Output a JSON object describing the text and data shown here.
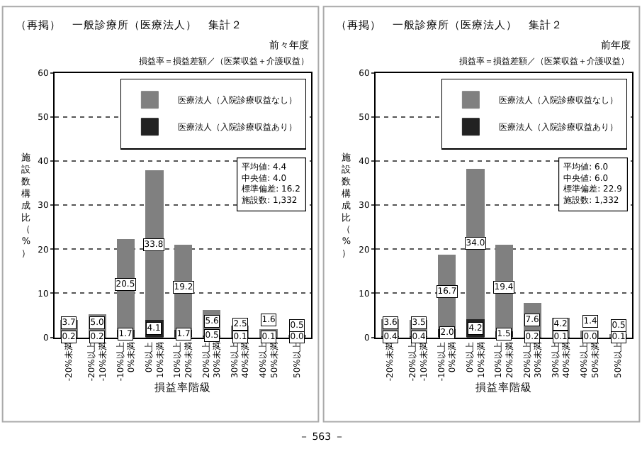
{
  "chart_data": [
    {
      "type": "bar",
      "title": "（再掲）　一般診療所（医療法人）　集計２",
      "subtitle": "前々年度",
      "xlabel": "損益率階級",
      "ylabel": "施設数構成比（%）",
      "annotations": [
        "損益率＝損益差額／（医業収益＋介護収益）",
        "平均値: 4.4",
        "中央値: 4.0",
        "標準偏差: 16.2",
        "施設数: 1,332"
      ],
      "categories": [
        "-20%未満",
        "-20%以上\n-10%未満",
        "-10%以上\n0%未満",
        "0%以上\n10%未満",
        "10%以上\n20%未満",
        "20%以上\n30%未満",
        "30%以上\n40%未満",
        "40%以上\n50%未満",
        "50%以上"
      ],
      "series": [
        {
          "name": "医療法人（入院診療収益あり）",
          "color": "#222222",
          "values": [
            0.2,
            0.2,
            1.7,
            4.1,
            1.7,
            0.5,
            0.1,
            0.1,
            0.0
          ],
          "value_labels": [
            "0.2",
            "0.2",
            "1.7",
            "4.1",
            "1.7",
            "0.5",
            "0.1",
            "0.1",
            "0.0"
          ]
        },
        {
          "name": "医療法人（入院診療収益なし）",
          "color": "#808080",
          "values": [
            3.7,
            5.0,
            20.5,
            33.8,
            19.2,
            5.6,
            2.5,
            1.6,
            0.5
          ],
          "value_labels": [
            "3.7",
            "5.0",
            "20.5",
            "33.8",
            "19.2",
            "5.6",
            "2.5",
            "1.6",
            "0.5"
          ]
        }
      ],
      "stacked": true,
      "ylim": [
        0,
        60
      ],
      "yticks": [
        0,
        10,
        20,
        30,
        40,
        50,
        60
      ],
      "grid": "y",
      "legend": "top right"
    },
    {
      "type": "bar",
      "title": "（再掲）　一般診療所（医療法人）　集計２",
      "subtitle": "前年度",
      "xlabel": "損益率階級",
      "ylabel": "施設数構成比（%）",
      "annotations": [
        "損益率＝損益差額／（医業収益＋介護収益）",
        "平均値: 6.0",
        "中央値: 6.0",
        "標準偏差: 22.9",
        "施設数: 1,332",
        "－ 563 －"
      ],
      "categories": [
        "-20%未満",
        "-20%以上\n-10%未満",
        "-10%以上\n0%未満",
        "0%以上\n10%未満",
        "10%以上\n20%未満",
        "20%以上\n30%未満",
        "30%以上\n40%未満",
        "40%以上\n50%未満",
        "50%以上"
      ],
      "series": [
        {
          "name": "医療法人（入院診療収益あり）",
          "color": "#222222",
          "values": [
            0.4,
            0.4,
            2.0,
            4.2,
            1.5,
            0.2,
            0.1,
            0.0,
            0.1
          ],
          "value_labels": [
            "0.4",
            "0.4",
            "2.0",
            "4.2",
            "1.5",
            "0.2",
            "0.1",
            "0.0",
            "0.1"
          ]
        },
        {
          "name": "医療法人（入院診療収益なし）",
          "color": "#808080",
          "values": [
            3.6,
            3.5,
            16.7,
            34.0,
            19.4,
            7.6,
            4.2,
            1.4,
            0.5
          ],
          "value_labels": [
            "3.6",
            "3.5",
            "16.7",
            "34.0",
            "19.4",
            "7.6",
            "4.2",
            "1.4",
            "0.5"
          ]
        }
      ],
      "stacked": true,
      "ylim": [
        0,
        60
      ],
      "yticks": [
        0,
        10,
        20,
        30,
        40,
        50,
        60
      ],
      "grid": "y",
      "legend": "top right"
    }
  ]
}
